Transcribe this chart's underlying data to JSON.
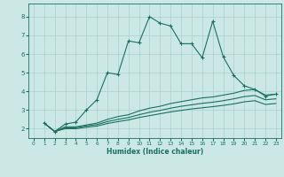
{
  "xlabel": "Humidex (Indice chaleur)",
  "background_color": "#cce8e4",
  "grid_color": "#aad0cb",
  "line_color": "#1a7060",
  "xlim": [
    -0.5,
    23.5
  ],
  "ylim": [
    1.5,
    8.7
  ],
  "xticks": [
    0,
    1,
    2,
    3,
    4,
    5,
    6,
    7,
    8,
    9,
    10,
    11,
    12,
    13,
    14,
    15,
    16,
    17,
    18,
    19,
    20,
    21,
    22,
    23
  ],
  "yticks": [
    2,
    3,
    4,
    5,
    6,
    7,
    8
  ],
  "line1_x": [
    1,
    2,
    3,
    4,
    5,
    6,
    7,
    8,
    9,
    10,
    11,
    12,
    13,
    14,
    15,
    16,
    17,
    18,
    19,
    20,
    21,
    22,
    23
  ],
  "line1_y": [
    2.3,
    1.85,
    2.25,
    2.35,
    3.0,
    3.55,
    5.0,
    4.9,
    6.7,
    6.6,
    8.0,
    7.65,
    7.5,
    6.55,
    6.55,
    5.8,
    7.75,
    5.85,
    4.85,
    4.3,
    4.1,
    3.75,
    3.85
  ],
  "line2_x": [
    1,
    2,
    3,
    4,
    5,
    6,
    7,
    8,
    9,
    10,
    11,
    12,
    13,
    14,
    15,
    16,
    17,
    18,
    19,
    20,
    21,
    22,
    23
  ],
  "line2_y": [
    2.3,
    1.85,
    2.1,
    2.1,
    2.2,
    2.3,
    2.5,
    2.65,
    2.75,
    2.95,
    3.1,
    3.2,
    3.35,
    3.45,
    3.55,
    3.65,
    3.7,
    3.8,
    3.9,
    4.05,
    4.1,
    3.8,
    3.85
  ],
  "line3_x": [
    1,
    2,
    3,
    4,
    5,
    6,
    7,
    8,
    9,
    10,
    11,
    12,
    13,
    14,
    15,
    16,
    17,
    18,
    19,
    20,
    21,
    22,
    23
  ],
  "line3_y": [
    2.3,
    1.85,
    2.05,
    2.05,
    2.15,
    2.22,
    2.38,
    2.5,
    2.6,
    2.75,
    2.88,
    2.98,
    3.1,
    3.2,
    3.28,
    3.36,
    3.42,
    3.5,
    3.6,
    3.72,
    3.78,
    3.55,
    3.6
  ],
  "line4_x": [
    1,
    2,
    3,
    4,
    5,
    6,
    7,
    8,
    9,
    10,
    11,
    12,
    13,
    14,
    15,
    16,
    17,
    18,
    19,
    20,
    21,
    22,
    23
  ],
  "line4_y": [
    2.3,
    1.85,
    2.0,
    2.0,
    2.08,
    2.14,
    2.28,
    2.38,
    2.47,
    2.6,
    2.7,
    2.8,
    2.9,
    2.98,
    3.06,
    3.12,
    3.18,
    3.25,
    3.33,
    3.44,
    3.5,
    3.3,
    3.35
  ]
}
